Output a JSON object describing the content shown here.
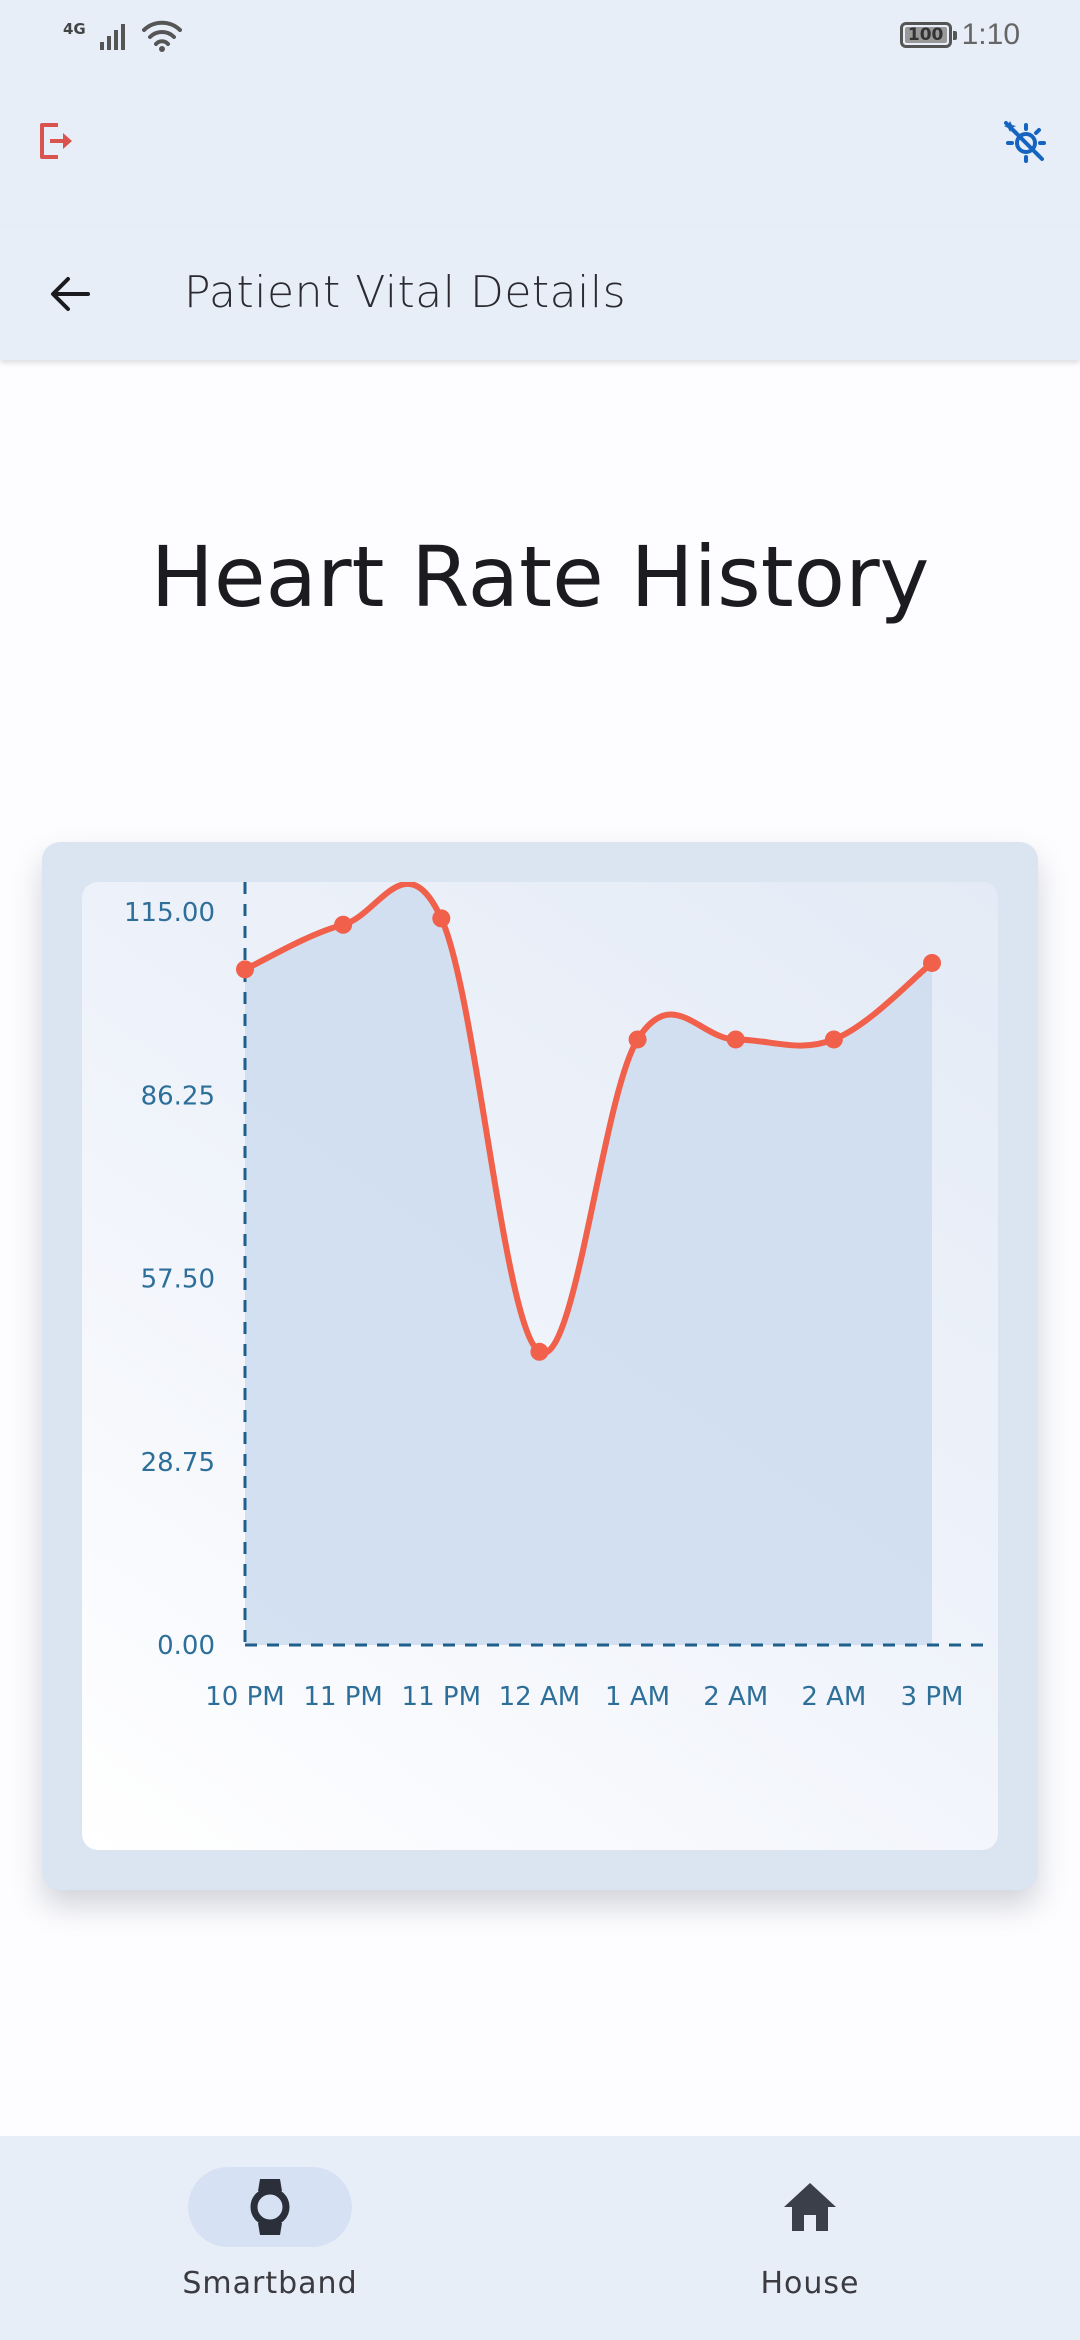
{
  "status_bar": {
    "network": "4G",
    "battery": "100",
    "time": "1:10"
  },
  "header": {
    "title": "Patient Vital Details"
  },
  "main": {
    "heading": "Heart Rate History"
  },
  "chart_data": {
    "type": "line",
    "categories": [
      "10 PM",
      "11 PM",
      "11 PM",
      "12 AM",
      "1 AM",
      "2 AM",
      "2 AM",
      "3 PM"
    ],
    "values": [
      106,
      113,
      114,
      46,
      95,
      95,
      95,
      107
    ],
    "yticks": [
      "0.00",
      "28.75",
      "57.50",
      "86.25",
      "115.00"
    ],
    "ylim": [
      0,
      115
    ],
    "line_color": "#f0604a",
    "fill_color": "#cddcef",
    "axis_color": "#1f5f8b"
  },
  "bottom_nav": {
    "items": [
      {
        "label": "Smartband",
        "icon": "watch-icon"
      },
      {
        "label": "House",
        "icon": "home-icon"
      }
    ]
  },
  "colors": {
    "accent": "#1565c0",
    "logout": "#d9534f"
  }
}
